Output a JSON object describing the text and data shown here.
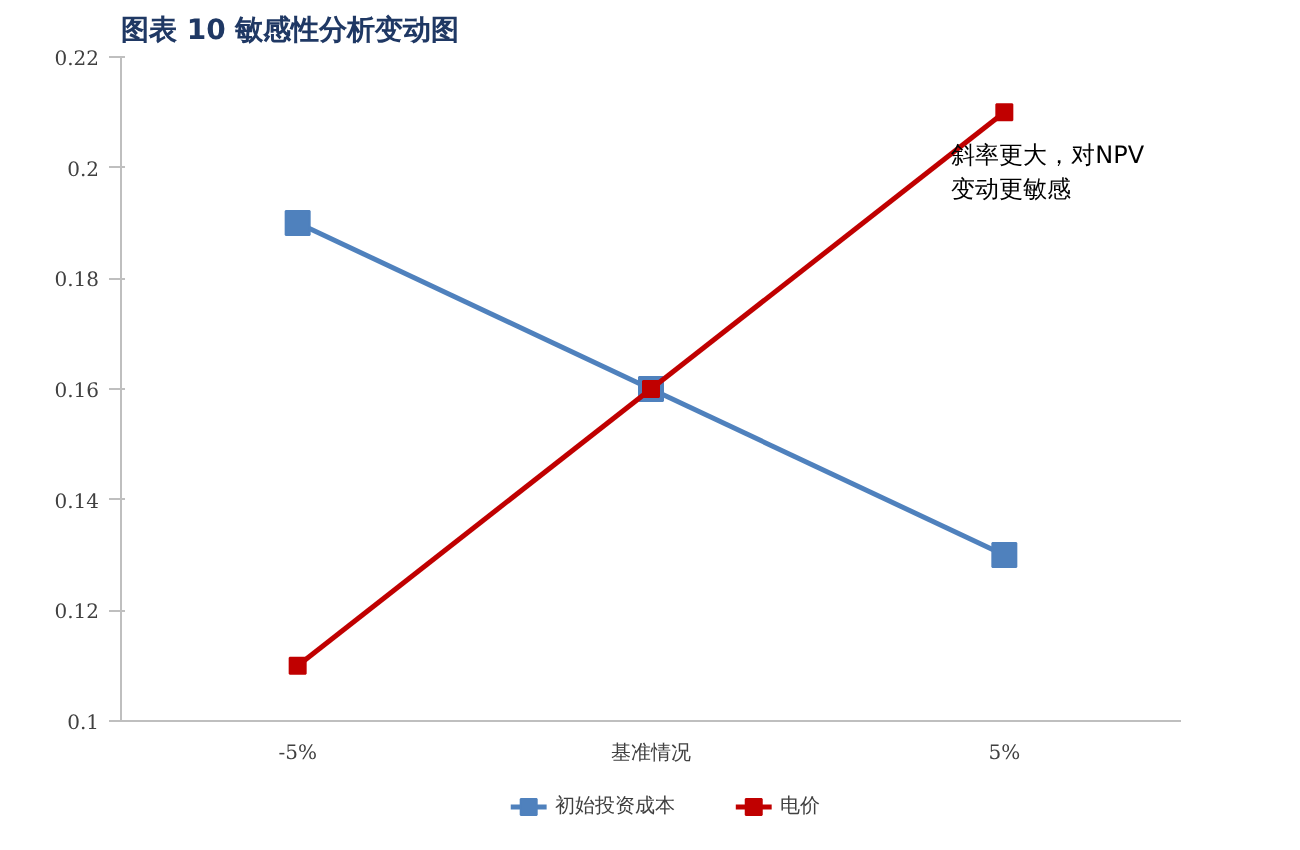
{
  "chart_data": {
    "type": "line",
    "title": "图表 10  敏感性分析变动图",
    "categories": [
      "-5%",
      "基准情况",
      "5%"
    ],
    "series": [
      {
        "name": "初始投资成本",
        "color": "#4f81bd",
        "values": [
          0.19,
          0.16,
          0.13
        ]
      },
      {
        "name": "电价",
        "color": "#c00000",
        "values": [
          0.11,
          0.16,
          0.21
        ]
      }
    ],
    "ylim": [
      0.1,
      0.22
    ],
    "yticks": [
      0.1,
      0.12,
      0.14,
      0.16,
      0.18,
      0.2,
      0.22
    ],
    "marker": "square",
    "legend": "bottom",
    "grid": false,
    "annotations": [
      "斜率更大，对NPV\n变动更敏感"
    ]
  }
}
